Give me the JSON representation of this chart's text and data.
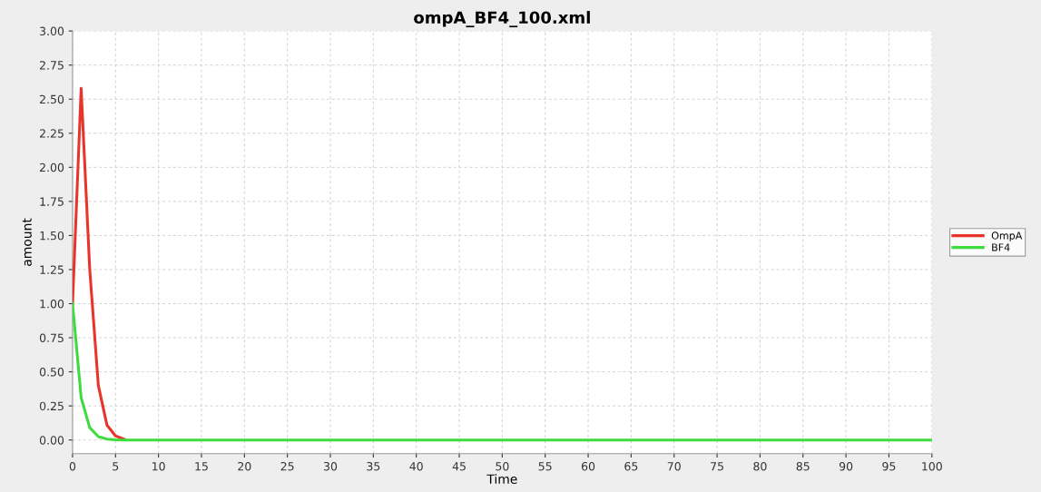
{
  "chart_data": {
    "type": "line",
    "title": "ompA_BF4_100.xml",
    "xlabel": "Time",
    "ylabel": "amount",
    "x": [
      0,
      1,
      2,
      3,
      4,
      5,
      6,
      7,
      8,
      9,
      10,
      20,
      30,
      40,
      50,
      60,
      70,
      80,
      90,
      100
    ],
    "series": [
      {
        "name": "OmpA",
        "color": "#e8342a",
        "values": [
          1.0,
          2.58,
          1.25,
          0.4,
          0.11,
          0.03,
          0.005,
          null,
          null,
          null,
          null,
          null,
          null,
          null,
          null,
          null,
          null,
          null,
          null,
          null
        ]
      },
      {
        "name": "BF4",
        "color": "#3ddc3d",
        "values": [
          1.0,
          0.31,
          0.09,
          0.025,
          0.007,
          0.002,
          0.0,
          0.0,
          0.0,
          0.0,
          0.0,
          0.0,
          0.0,
          0.0,
          0.0,
          0.0,
          0.0,
          0.0,
          0.0,
          0.0
        ]
      }
    ],
    "xlim": [
      0,
      100
    ],
    "xticks": [
      0,
      5,
      10,
      15,
      20,
      25,
      30,
      35,
      40,
      45,
      50,
      55,
      60,
      65,
      70,
      75,
      80,
      85,
      90,
      95,
      100
    ],
    "ylim": [
      -0.1,
      3.0
    ],
    "yticks": [
      {
        "value": 0,
        "label": "0.00"
      },
      {
        "value": 0.25,
        "label": "0.25"
      },
      {
        "value": 0.5,
        "label": "0.50"
      },
      {
        "value": 0.75,
        "label": "0.75"
      },
      {
        "value": 1,
        "label": "1.00"
      },
      {
        "value": 1.25,
        "label": "1.25"
      },
      {
        "value": 1.5,
        "label": "1.50"
      },
      {
        "value": 1.75,
        "label": "1.75"
      },
      {
        "value": 2,
        "label": "2.00"
      },
      {
        "value": 2.25,
        "label": "2.25"
      },
      {
        "value": 2.5,
        "label": "2.50"
      },
      {
        "value": 2.75,
        "label": "2.75"
      },
      {
        "value": 3,
        "label": "3.00"
      }
    ],
    "grid": true,
    "legend": "right",
    "marker": "none",
    "line_style": "solid"
  }
}
